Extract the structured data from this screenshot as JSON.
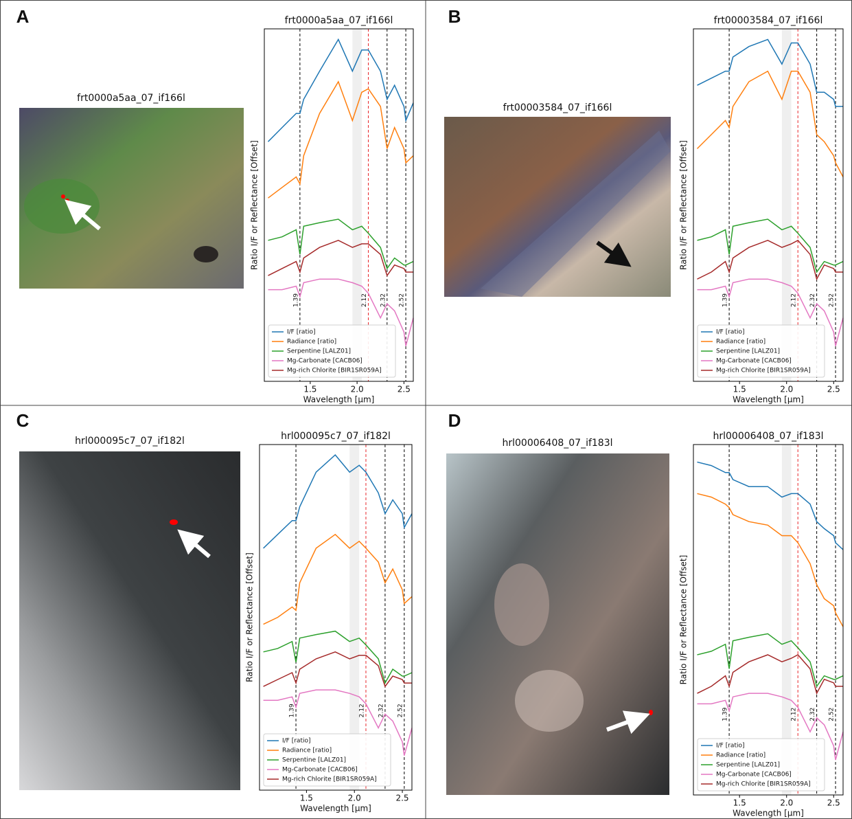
{
  "chart_data": [
    {
      "type": "line",
      "panel": "A",
      "image_title": "frt0000a5aa_07_if166l",
      "title": "frt0000a5aa_07_if166l",
      "xlabel": "Wavelength [μm]",
      "ylabel": "Ratio I/F or Reflectance [Offset]",
      "xlim": [
        1.01,
        2.6
      ],
      "xticks": [
        1.5,
        {
          "value": 2,
          "label": "2.0"
        },
        2.5
      ],
      "ylim": [
        0,
        1
      ],
      "vlines": [
        1.39,
        2.12,
        2.32,
        2.52
      ],
      "vline_colors": [
        "#000000",
        "#e8262a",
        "#000000",
        "#000000"
      ],
      "shaded_band": [
        1.95,
        2.05
      ],
      "legend": "lower left",
      "x": [
        1.05,
        1.2,
        1.35,
        1.39,
        1.43,
        1.6,
        1.8,
        1.95,
        2.05,
        2.12,
        2.25,
        2.32,
        2.4,
        2.5,
        2.52,
        2.6
      ],
      "series": [
        {
          "name": "I/F [ratio]",
          "color": "#1f77b4",
          "values": [
            0.68,
            0.72,
            0.76,
            0.76,
            0.8,
            0.88,
            0.97,
            0.88,
            0.94,
            0.94,
            0.88,
            0.8,
            0.84,
            0.78,
            0.74,
            0.79
          ]
        },
        {
          "name": "Radiance [ratio]",
          "color": "#ff7f0e",
          "values": [
            0.52,
            0.55,
            0.58,
            0.56,
            0.64,
            0.76,
            0.85,
            0.74,
            0.82,
            0.83,
            0.78,
            0.66,
            0.72,
            0.66,
            0.62,
            0.64
          ]
        },
        {
          "name": "Serpentine [LALZ01]",
          "color": "#2ca02c",
          "values": [
            0.4,
            0.41,
            0.43,
            0.36,
            0.44,
            0.45,
            0.46,
            0.43,
            0.44,
            0.42,
            0.38,
            0.32,
            0.35,
            0.33,
            0.33,
            0.34
          ]
        },
        {
          "name": "Mg-Carbonate [CACB06]",
          "color": "#e377c2",
          "values": [
            0.26,
            0.26,
            0.27,
            0.24,
            0.28,
            0.29,
            0.29,
            0.28,
            0.27,
            0.25,
            0.18,
            0.22,
            0.2,
            0.14,
            0.1,
            0.18
          ]
        },
        {
          "name": "Mg-rich Chlorite [BIR1SR059A]",
          "color": "#a52a2a",
          "values": [
            0.3,
            0.32,
            0.34,
            0.31,
            0.35,
            0.38,
            0.4,
            0.38,
            0.39,
            0.39,
            0.36,
            0.3,
            0.33,
            0.32,
            0.31,
            0.31
          ]
        }
      ]
    },
    {
      "type": "line",
      "panel": "B",
      "image_title": "frt00003584_07_if166l",
      "title": "frt00003584_07_if166l",
      "xlabel": "Wavelength [μm]",
      "ylabel": "Ratio I/F or Reflectance [Offset]",
      "xlim": [
        1.01,
        2.6
      ],
      "xticks": [
        1.5,
        {
          "value": 2,
          "label": "2.0"
        },
        2.5
      ],
      "ylim": [
        0,
        1
      ],
      "vlines": [
        1.39,
        2.12,
        2.32,
        2.52
      ],
      "vline_colors": [
        "#000000",
        "#e8262a",
        "#000000",
        "#000000"
      ],
      "shaded_band": [
        1.95,
        2.05
      ],
      "legend": "lower left",
      "x": [
        1.05,
        1.2,
        1.35,
        1.39,
        1.43,
        1.6,
        1.8,
        1.95,
        2.05,
        2.12,
        2.25,
        2.32,
        2.4,
        2.5,
        2.52,
        2.6
      ],
      "series": [
        {
          "name": "I/F [ratio]",
          "color": "#1f77b4",
          "values": [
            0.84,
            0.86,
            0.88,
            0.88,
            0.92,
            0.95,
            0.97,
            0.9,
            0.96,
            0.96,
            0.9,
            0.82,
            0.82,
            0.8,
            0.78,
            0.78
          ]
        },
        {
          "name": "Radiance [ratio]",
          "color": "#ff7f0e",
          "values": [
            0.66,
            0.7,
            0.74,
            0.72,
            0.78,
            0.85,
            0.88,
            0.8,
            0.88,
            0.88,
            0.82,
            0.7,
            0.68,
            0.64,
            0.62,
            0.58
          ]
        },
        {
          "name": "Serpentine [LALZ01]",
          "color": "#2ca02c",
          "values": [
            0.4,
            0.41,
            0.43,
            0.36,
            0.44,
            0.45,
            0.46,
            0.43,
            0.44,
            0.42,
            0.38,
            0.31,
            0.34,
            0.33,
            0.33,
            0.34
          ]
        },
        {
          "name": "Mg-Carbonate [CACB06]",
          "color": "#e377c2",
          "values": [
            0.26,
            0.26,
            0.27,
            0.24,
            0.28,
            0.29,
            0.29,
            0.28,
            0.27,
            0.25,
            0.18,
            0.22,
            0.2,
            0.14,
            0.1,
            0.18
          ]
        },
        {
          "name": "Mg-rich Chlorite [BIR1SR059A]",
          "color": "#a52a2a",
          "values": [
            0.29,
            0.31,
            0.34,
            0.31,
            0.35,
            0.38,
            0.4,
            0.38,
            0.39,
            0.4,
            0.36,
            0.29,
            0.33,
            0.32,
            0.31,
            0.31
          ]
        }
      ]
    },
    {
      "type": "line",
      "panel": "C",
      "image_title": "hrl000095c7_07_if182l",
      "title": "hrl000095c7_07_if182l",
      "xlabel": "Wavelength [μm]",
      "ylabel": "Ratio I/F or Reflectance [Offset]",
      "xlim": [
        1.01,
        2.6
      ],
      "xticks": [
        1.5,
        {
          "value": 2,
          "label": "2.0"
        },
        2.5
      ],
      "ylim": [
        0,
        1
      ],
      "vlines": [
        1.39,
        2.12,
        2.32,
        2.52
      ],
      "vline_colors": [
        "#000000",
        "#e8262a",
        "#000000",
        "#000000"
      ],
      "shaded_band": [
        1.95,
        2.05
      ],
      "legend": "lower left",
      "x": [
        1.05,
        1.2,
        1.35,
        1.39,
        1.43,
        1.6,
        1.8,
        1.95,
        2.05,
        2.12,
        2.25,
        2.32,
        2.4,
        2.5,
        2.52,
        2.6
      ],
      "series": [
        {
          "name": "I/F [ratio]",
          "color": "#1f77b4",
          "values": [
            0.7,
            0.74,
            0.78,
            0.78,
            0.82,
            0.92,
            0.97,
            0.92,
            0.94,
            0.92,
            0.86,
            0.8,
            0.84,
            0.8,
            0.76,
            0.8
          ]
        },
        {
          "name": "Radiance [ratio]",
          "color": "#ff7f0e",
          "values": [
            0.48,
            0.5,
            0.53,
            0.52,
            0.6,
            0.7,
            0.74,
            0.7,
            0.72,
            0.7,
            0.66,
            0.6,
            0.64,
            0.58,
            0.54,
            0.56
          ]
        },
        {
          "name": "Serpentine [LALZ01]",
          "color": "#2ca02c",
          "values": [
            0.4,
            0.41,
            0.43,
            0.37,
            0.44,
            0.45,
            0.46,
            0.43,
            0.44,
            0.42,
            0.38,
            0.31,
            0.35,
            0.33,
            0.33,
            0.34
          ]
        },
        {
          "name": "Mg-Carbonate [CACB06]",
          "color": "#e377c2",
          "values": [
            0.26,
            0.26,
            0.27,
            0.24,
            0.28,
            0.29,
            0.29,
            0.28,
            0.27,
            0.25,
            0.18,
            0.22,
            0.2,
            0.14,
            0.1,
            0.18
          ]
        },
        {
          "name": "Mg-rich Chlorite [BIR1SR059A]",
          "color": "#a52a2a",
          "values": [
            0.3,
            0.32,
            0.34,
            0.31,
            0.35,
            0.38,
            0.4,
            0.38,
            0.39,
            0.39,
            0.36,
            0.3,
            0.33,
            0.32,
            0.31,
            0.31
          ]
        }
      ]
    },
    {
      "type": "line",
      "panel": "D",
      "image_title": "hrl00006408_07_if183l",
      "title": "hrl00006408_07_if183l",
      "xlabel": "Wavelength [μm]",
      "ylabel": "Ratio I/F or Reflectance [Offset]",
      "xlim": [
        1.01,
        2.6
      ],
      "xticks": [
        1.5,
        {
          "value": 2,
          "label": "2.0"
        },
        2.5
      ],
      "ylim": [
        0,
        1
      ],
      "vlines": [
        1.39,
        2.12,
        2.32,
        2.52
      ],
      "vline_colors": [
        "#000000",
        "#e8262a",
        "#000000",
        "#000000"
      ],
      "shaded_band": [
        1.95,
        2.05
      ],
      "legend": "lower left",
      "x": [
        1.05,
        1.2,
        1.35,
        1.39,
        1.43,
        1.6,
        1.8,
        1.95,
        2.05,
        2.12,
        2.25,
        2.32,
        2.4,
        2.5,
        2.52,
        2.6
      ],
      "series": [
        {
          "name": "I/F [ratio]",
          "color": "#1f77b4",
          "values": [
            0.95,
            0.94,
            0.92,
            0.92,
            0.9,
            0.88,
            0.88,
            0.85,
            0.86,
            0.86,
            0.83,
            0.78,
            0.76,
            0.74,
            0.72,
            0.7
          ]
        },
        {
          "name": "Radiance [ratio]",
          "color": "#ff7f0e",
          "values": [
            0.86,
            0.85,
            0.83,
            0.82,
            0.8,
            0.78,
            0.77,
            0.74,
            0.74,
            0.72,
            0.66,
            0.6,
            0.56,
            0.54,
            0.52,
            0.48
          ]
        },
        {
          "name": "Serpentine [LALZ01]",
          "color": "#2ca02c",
          "values": [
            0.4,
            0.41,
            0.43,
            0.36,
            0.44,
            0.45,
            0.46,
            0.43,
            0.44,
            0.42,
            0.38,
            0.31,
            0.34,
            0.33,
            0.33,
            0.34
          ]
        },
        {
          "name": "Mg-Carbonate [CACB06]",
          "color": "#e377c2",
          "values": [
            0.26,
            0.26,
            0.27,
            0.24,
            0.28,
            0.29,
            0.29,
            0.28,
            0.27,
            0.25,
            0.18,
            0.22,
            0.2,
            0.14,
            0.1,
            0.18
          ]
        },
        {
          "name": "Mg-rich Chlorite [BIR1SR059A]",
          "color": "#a52a2a",
          "values": [
            0.29,
            0.31,
            0.34,
            0.31,
            0.35,
            0.38,
            0.4,
            0.38,
            0.39,
            0.4,
            0.36,
            0.29,
            0.33,
            0.32,
            0.31,
            0.31
          ]
        }
      ]
    }
  ]
}
